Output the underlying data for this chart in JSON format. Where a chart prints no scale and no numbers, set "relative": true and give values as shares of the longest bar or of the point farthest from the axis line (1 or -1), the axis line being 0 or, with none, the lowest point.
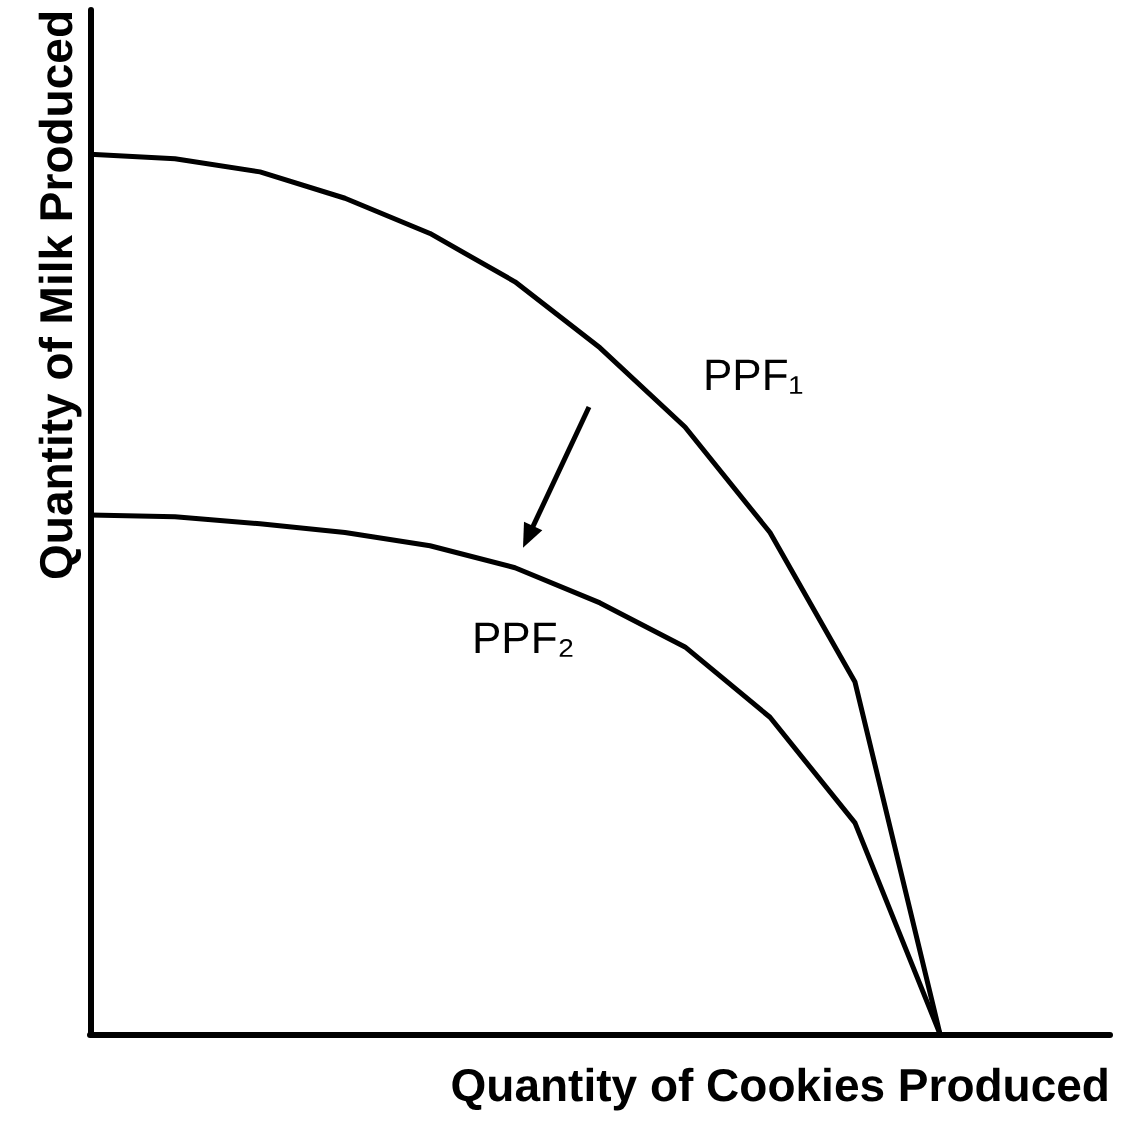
{
  "chart_data": {
    "type": "line",
    "relative": true,
    "xlabel": "Quantity of Cookies Produced",
    "ylabel": "Quantity of Milk Produced",
    "grid": false,
    "legend": false,
    "marker": "none",
    "line_style": "solid",
    "categories": [
      null,
      null,
      null,
      null,
      null,
      null,
      null,
      null,
      null,
      null,
      null,
      null,
      null
    ],
    "series": [
      {
        "name": "PPF₁",
        "color": "#000000",
        "values": [
          1,
          0.995,
          0.98,
          0.95,
          0.91,
          0.855,
          0.78,
          0.69,
          0.57,
          0.4,
          0,
          null,
          null
        ]
      },
      {
        "name": "PPF₂",
        "color": "#000000",
        "values": [
          0.59,
          0.588,
          0.58,
          0.57,
          0.555,
          0.53,
          0.49,
          0.44,
          0.36,
          0.24,
          0,
          null,
          null
        ]
      }
    ]
  }
}
